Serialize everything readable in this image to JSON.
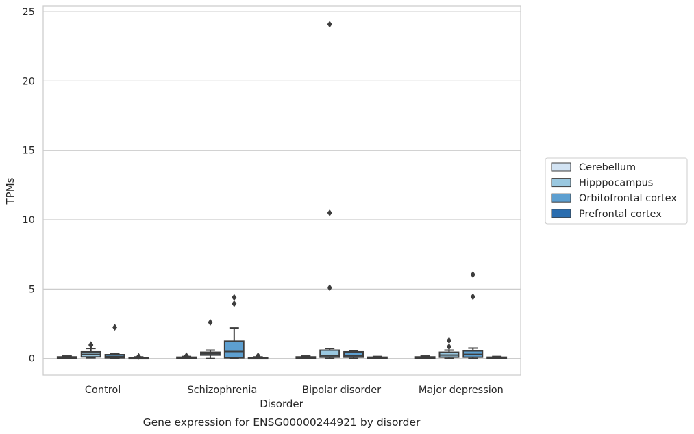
{
  "chart_data": {
    "type": "box",
    "title": "Gene expression for ENSG00000244921 by disorder",
    "xlabel": "Disorder",
    "ylabel": "TPMs",
    "categories": [
      "Control",
      "Schizophrenia",
      "Bipolar disorder",
      "Major depression"
    ],
    "y_ticks": [
      0,
      5,
      10,
      15,
      20,
      25
    ],
    "ylim": [
      -1.2,
      25.4
    ],
    "grid": "horizontal",
    "legend_position": "right",
    "series": [
      {
        "name": "Cerebellum",
        "color": "#d2e3f3",
        "boxes": [
          {
            "whislo": 0.0,
            "q1": 0.0,
            "med": 0.05,
            "q3": 0.12,
            "whishi": 0.18,
            "fliers": []
          },
          {
            "whislo": 0.0,
            "q1": 0.0,
            "med": 0.05,
            "q3": 0.1,
            "whishi": 0.15,
            "fliers": [
              0.2
            ]
          },
          {
            "whislo": 0.0,
            "q1": 0.0,
            "med": 0.05,
            "q3": 0.12,
            "whishi": 0.18,
            "fliers": []
          },
          {
            "whislo": 0.0,
            "q1": 0.0,
            "med": 0.05,
            "q3": 0.12,
            "whishi": 0.18,
            "fliers": []
          }
        ]
      },
      {
        "name": "Hipppocampus",
        "color": "#9ac8e0",
        "boxes": [
          {
            "whislo": 0.05,
            "q1": 0.12,
            "med": 0.3,
            "q3": 0.48,
            "whishi": 0.72,
            "fliers": [
              0.95,
              1.0
            ]
          },
          {
            "whislo": 0.0,
            "q1": 0.25,
            "med": 0.35,
            "q3": 0.45,
            "whishi": 0.6,
            "fliers": [
              2.6
            ]
          },
          {
            "whislo": 0.0,
            "q1": 0.1,
            "med": 0.2,
            "q3": 0.6,
            "whishi": 0.72,
            "fliers": [
              5.1,
              10.5,
              24.1
            ]
          },
          {
            "whislo": 0.0,
            "q1": 0.1,
            "med": 0.25,
            "q3": 0.45,
            "whishi": 0.6,
            "fliers": [
              0.85,
              1.3
            ]
          }
        ]
      },
      {
        "name": "Orbitofrontal cortex",
        "color": "#5d9fd0",
        "boxes": [
          {
            "whislo": 0.0,
            "q1": 0.05,
            "med": 0.15,
            "q3": 0.28,
            "whishi": 0.38,
            "fliers": [
              2.25
            ]
          },
          {
            "whislo": 0.0,
            "q1": 0.05,
            "med": 0.5,
            "q3": 1.25,
            "whishi": 2.2,
            "fliers": [
              3.95,
              4.4
            ]
          },
          {
            "whislo": 0.0,
            "q1": 0.1,
            "med": 0.2,
            "q3": 0.48,
            "whishi": 0.55,
            "fliers": []
          },
          {
            "whislo": 0.0,
            "q1": 0.1,
            "med": 0.3,
            "q3": 0.55,
            "whishi": 0.75,
            "fliers": [
              4.45,
              6.05
            ]
          }
        ]
      },
      {
        "name": "Prefrontal cortex",
        "color": "#2a6daf",
        "boxes": [
          {
            "whislo": 0.0,
            "q1": 0.0,
            "med": 0.03,
            "q3": 0.08,
            "whishi": 0.12,
            "fliers": [
              0.15
            ]
          },
          {
            "whislo": 0.0,
            "q1": 0.0,
            "med": 0.03,
            "q3": 0.08,
            "whishi": 0.12,
            "fliers": [
              0.2
            ]
          },
          {
            "whislo": 0.0,
            "q1": 0.0,
            "med": 0.05,
            "q3": 0.1,
            "whishi": 0.15,
            "fliers": []
          },
          {
            "whislo": 0.0,
            "q1": 0.0,
            "med": 0.05,
            "q3": 0.1,
            "whishi": 0.15,
            "fliers": []
          }
        ]
      }
    ]
  }
}
